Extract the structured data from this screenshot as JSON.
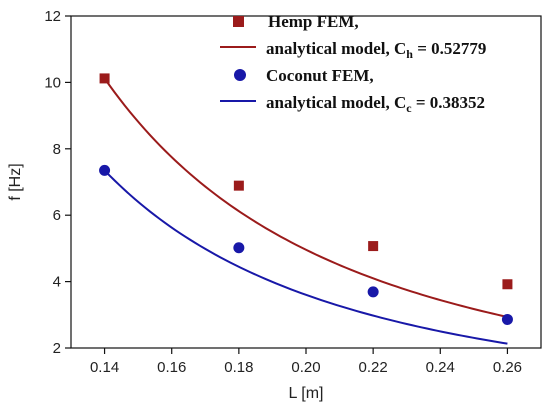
{
  "chart_data": {
    "type": "scatter",
    "xlabel": "L [m]",
    "ylabel": "f  [Hz]",
    "xlim": [
      0.13,
      0.27
    ],
    "ylim": [
      2,
      12
    ],
    "x_ticks": [
      "0.14",
      "0.16",
      "0.18",
      "0.20",
      "0.22",
      "0.24",
      "0.26"
    ],
    "y_ticks": [
      "2",
      "4",
      "6",
      "8",
      "10",
      "12"
    ],
    "grid": false,
    "legend_position": "top-right",
    "series": [
      {
        "name": "Hemp FEM,",
        "kind": "markers",
        "marker": "square",
        "color": "#9b1b1b",
        "x": [
          0.14,
          0.18,
          0.22,
          0.26
        ],
        "y": [
          10.12,
          6.89,
          5.07,
          3.92
        ]
      },
      {
        "name": "analytical model, C",
        "name_subscript": "h",
        "name_suffix": " = 0.52779",
        "kind": "line",
        "color": "#9b1b1b",
        "curve": {
          "coefficient": 0.52779,
          "x_range": [
            0.14,
            0.26
          ]
        }
      },
      {
        "name": "Coconut FEM,",
        "kind": "markers",
        "marker": "circle",
        "color": "#1818a8",
        "x": [
          0.14,
          0.18,
          0.22,
          0.26
        ],
        "y": [
          7.35,
          5.02,
          3.69,
          2.86
        ]
      },
      {
        "name": "analytical model, C",
        "name_subscript": "c",
        "name_suffix": " = 0.38352",
        "kind": "line",
        "color": "#1818a8",
        "curve": {
          "coefficient": 0.38352,
          "x_range": [
            0.14,
            0.26
          ]
        }
      }
    ]
  }
}
